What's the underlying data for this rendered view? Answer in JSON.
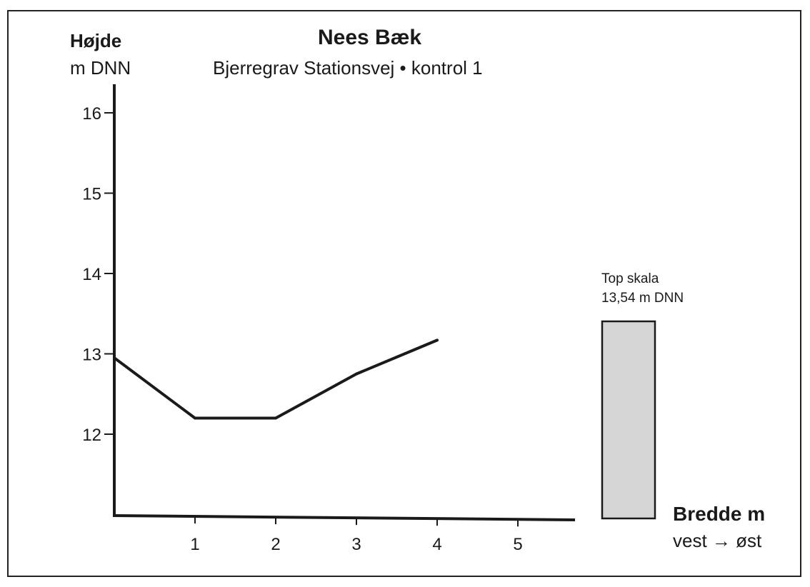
{
  "chart_data": {
    "type": "line",
    "title": "Nees Bæk",
    "subtitle": "Bjerregrav Stationsvej • kontrol 1",
    "ylabel": "Højde",
    "yunit": "m DNN",
    "xlabel": "Bredde m",
    "xdirection": "vest → øst",
    "xlim": [
      0,
      5.65
    ],
    "ylim": [
      11,
      16.4
    ],
    "xticks": [
      1,
      2,
      3,
      4,
      5
    ],
    "yticks": [
      12,
      13,
      14,
      15,
      16
    ],
    "x": [
      0,
      1,
      2,
      3,
      4
    ],
    "y": [
      12.95,
      12.2,
      12.2,
      12.75,
      13.17
    ],
    "annotation": {
      "line1": "Top skala",
      "line2": "13,54 m DNN"
    },
    "grid": false,
    "legend": "none"
  },
  "colors": {
    "line": "#1a1a1a",
    "scale_fill": "#d6d6d6",
    "scale_border": "#1a1a1a"
  }
}
